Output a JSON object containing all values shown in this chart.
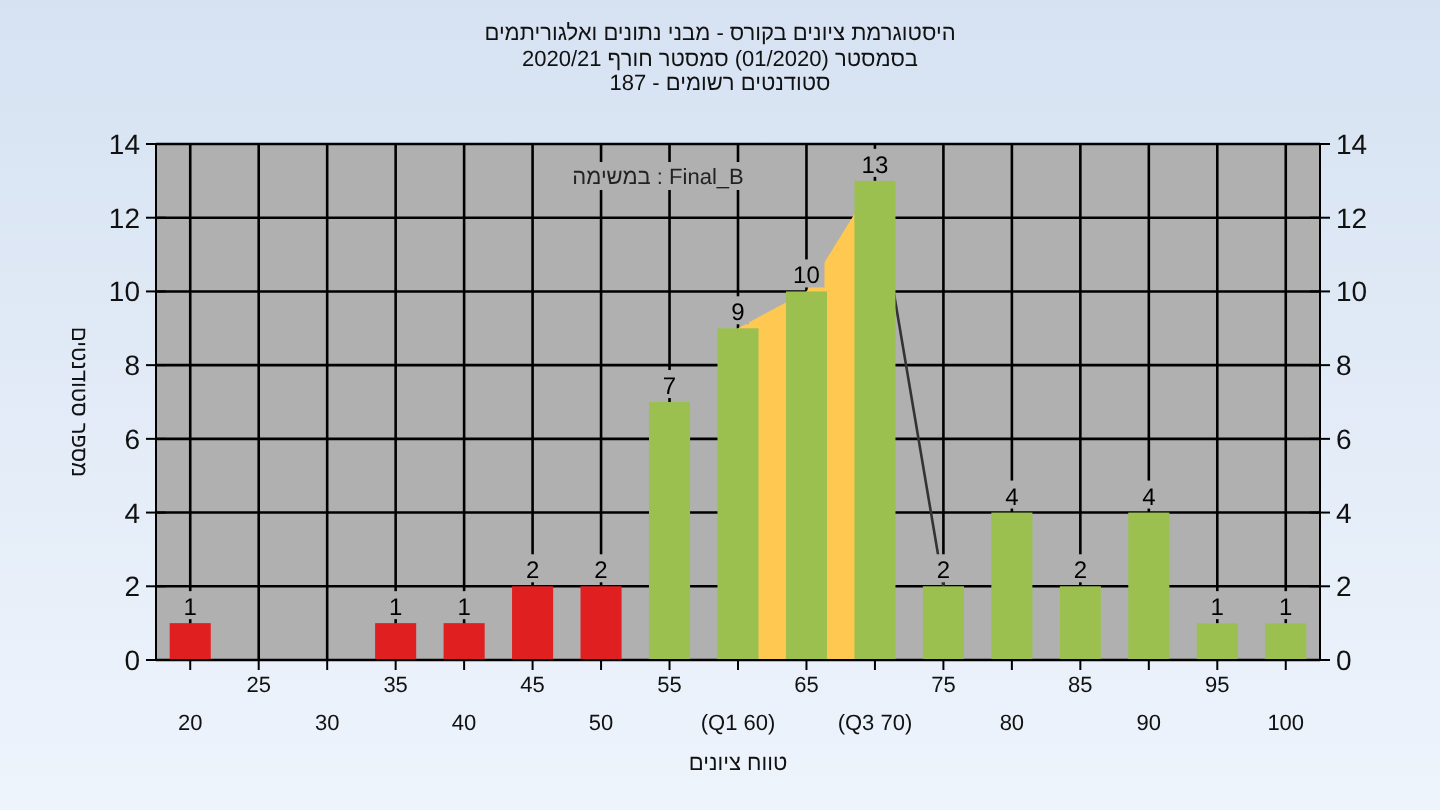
{
  "chart_data": {
    "type": "bar",
    "title": "היסטוגרמת ציונים בקורס - מבני נתונים ואלגוריתמים",
    "subtitle": [
      "בסמסטר (01/2020) סמסטר חורף 2020/21",
      "סטודנטים רשומים - 187"
    ],
    "xlabel": "טווח ציונים",
    "ylabel": "מספר סטודנטים",
    "annotations": [
      "במשימה : Final_B"
    ],
    "categories": [
      "20",
      "25",
      "30",
      "35",
      "40",
      "45",
      "50",
      "55",
      "(Q1 60)",
      "65",
      "(Q3 70)",
      "75",
      "80",
      "85",
      "90",
      "95",
      "100"
    ],
    "series": [
      {
        "type": "area",
        "color": "#ffc850",
        "values": [
          null,
          null,
          null,
          null,
          null,
          null,
          null,
          null,
          9,
          10,
          13,
          null,
          null,
          null,
          null,
          null,
          null
        ]
      },
      {
        "type": "line",
        "color": "#333333",
        "values": [
          null,
          null,
          null,
          null,
          null,
          null,
          null,
          null,
          null,
          null,
          13,
          2,
          null,
          null,
          null,
          null,
          null
        ]
      },
      {
        "values": [
          1,
          0,
          0,
          1,
          1,
          2,
          2,
          7,
          9,
          10,
          13,
          2,
          4,
          2,
          4,
          1,
          1
        ],
        "colors": [
          "#e02020",
          "#e02020",
          "#e02020",
          "#e02020",
          "#e02020",
          "#e02020",
          "#e02020",
          "#9cc050",
          "#9cc050",
          "#9cc050",
          "#9cc050",
          "#9cc050",
          "#9cc050",
          "#9cc050",
          "#9cc050",
          "#9cc050",
          "#9cc050"
        ],
        "value_labels": [
          "1",
          null,
          null,
          "1",
          "1",
          "2",
          "2",
          "7",
          "9",
          "10",
          "13",
          "2",
          "4",
          "2",
          "4",
          "1",
          "1"
        ]
      }
    ],
    "ylim": [
      0,
      14
    ],
    "yticks": [
      0,
      2,
      4,
      6,
      8,
      10,
      12,
      14
    ],
    "y2lim": [
      0,
      14
    ],
    "y2ticks": [
      0,
      2,
      4,
      6,
      8,
      10,
      12,
      14
    ],
    "grid": true
  }
}
